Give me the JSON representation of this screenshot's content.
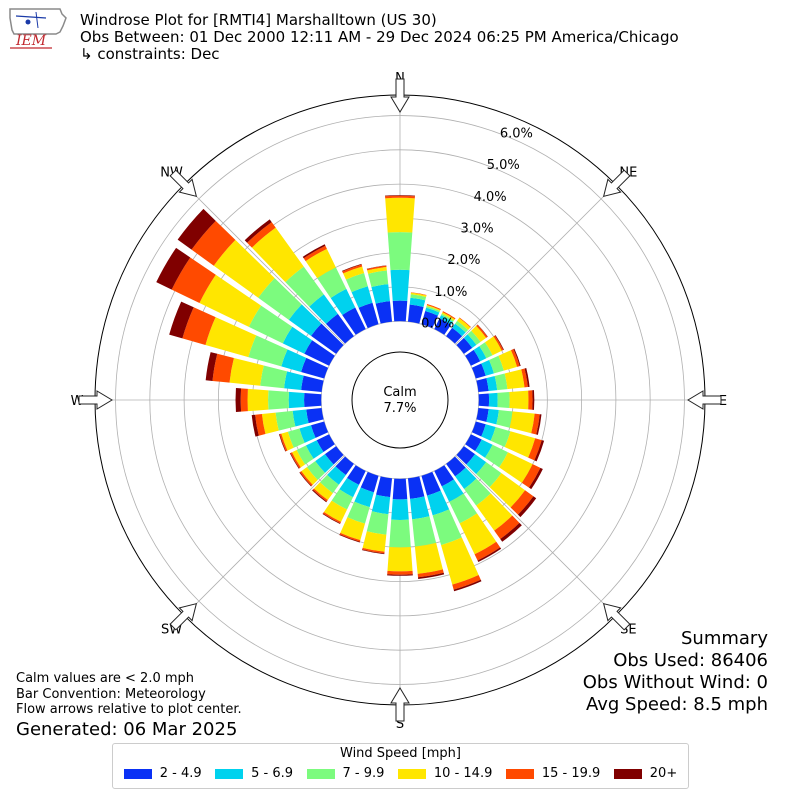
{
  "header": {
    "line1": "Windrose Plot for [RMTI4] Marshalltown (US 30)",
    "line2": "Obs Between: 01 Dec 2000 12:11 AM - 29 Dec 2024 06:25 PM America/Chicago",
    "line3": "↳ constraints: Dec"
  },
  "logo": {
    "text": "IEM"
  },
  "calm": {
    "label": "Calm",
    "value": "7.7%"
  },
  "summary": {
    "title": "Summary",
    "obs_used": "Obs Used: 86406",
    "obs_without_wind": "Obs Without Wind: 0",
    "avg_speed": "Avg Speed: 8.5 mph"
  },
  "notes": {
    "line1": "Calm values are < 2.0 mph",
    "line2": "Bar Convention: Meteorology",
    "line3": "Flow arrows relative to plot center.",
    "generated": "Generated: 06 Mar 2025"
  },
  "legend": {
    "title": "Wind Speed [mph]",
    "items": [
      {
        "label": "2 - 4.9",
        "color": "#0a31f5"
      },
      {
        "label": "5 - 6.9",
        "color": "#00d2ee"
      },
      {
        "label": "7 - 9.9",
        "color": "#7cfb7e"
      },
      {
        "label": "10 - 14.9",
        "color": "#ffe600"
      },
      {
        "label": "15 - 19.9",
        "color": "#ff4a00"
      },
      {
        "label": "20+",
        "color": "#800000"
      }
    ]
  },
  "chart_data": {
    "type": "windrose",
    "units": "%",
    "rlim": [
      -2.3,
      6.6
    ],
    "ring_labels": [
      "0.0%",
      "1.0%",
      "2.0%",
      "3.0%",
      "4.0%",
      "5.0%",
      "6.0%"
    ],
    "ring_values": [
      0,
      1,
      2,
      3,
      4,
      5,
      6
    ],
    "compass_labels": [
      "N",
      "NE",
      "E",
      "SE",
      "S",
      "SW",
      "W",
      "NW"
    ],
    "colors": [
      "#0a31f5",
      "#00d2ee",
      "#7cfb7e",
      "#ffe600",
      "#ff4a00",
      "#800000"
    ],
    "series_names": [
      "2 - 4.9",
      "5 - 6.9",
      "7 - 9.9",
      "10 - 14.9",
      "15 - 19.9",
      "20+"
    ],
    "directions": [
      0,
      10,
      20,
      30,
      40,
      50,
      60,
      70,
      80,
      90,
      100,
      110,
      120,
      130,
      140,
      150,
      160,
      170,
      180,
      190,
      200,
      210,
      220,
      230,
      240,
      250,
      260,
      270,
      280,
      290,
      300,
      310,
      320,
      330,
      340,
      350
    ],
    "values": [
      [
        0.6,
        0.9,
        1.1,
        1.0,
        0.06,
        0.02
      ],
      [
        0.5,
        0.2,
        0.1,
        0.05,
        0.01,
        0.0
      ],
      [
        0.4,
        0.1,
        0.05,
        0.03,
        0.03,
        0.0
      ],
      [
        0.35,
        0.1,
        0.05,
        0.05,
        0.03,
        0.0
      ],
      [
        0.3,
        0.15,
        0.1,
        0.1,
        0.02,
        0.0
      ],
      [
        0.3,
        0.15,
        0.15,
        0.2,
        0.05,
        0.01
      ],
      [
        0.3,
        0.2,
        0.2,
        0.3,
        0.05,
        0.02
      ],
      [
        0.3,
        0.25,
        0.3,
        0.4,
        0.08,
        0.03
      ],
      [
        0.3,
        0.25,
        0.3,
        0.5,
        0.1,
        0.05
      ],
      [
        0.3,
        0.25,
        0.35,
        0.55,
        0.12,
        0.05
      ],
      [
        0.3,
        0.3,
        0.4,
        0.65,
        0.15,
        0.05
      ],
      [
        0.3,
        0.3,
        0.45,
        0.75,
        0.2,
        0.07
      ],
      [
        0.35,
        0.35,
        0.5,
        0.8,
        0.25,
        0.08
      ],
      [
        0.4,
        0.4,
        0.55,
        0.85,
        0.3,
        0.1
      ],
      [
        0.45,
        0.45,
        0.6,
        0.9,
        0.3,
        0.1
      ],
      [
        0.5,
        0.5,
        0.7,
        1.0,
        0.2,
        0.05
      ],
      [
        0.6,
        0.6,
        0.9,
        1.2,
        0.15,
        0.05
      ],
      [
        0.6,
        0.6,
        0.8,
        0.8,
        0.1,
        0.05
      ],
      [
        0.6,
        0.6,
        0.8,
        0.7,
        0.1,
        0.03
      ],
      [
        0.55,
        0.5,
        0.6,
        0.5,
        0.05,
        0.02
      ],
      [
        0.5,
        0.45,
        0.5,
        0.5,
        0.05,
        0.02
      ],
      [
        0.45,
        0.4,
        0.4,
        0.4,
        0.05,
        0.02
      ],
      [
        0.4,
        0.35,
        0.3,
        0.25,
        0.05,
        0.03
      ],
      [
        0.4,
        0.35,
        0.3,
        0.2,
        0.05,
        0.02
      ],
      [
        0.4,
        0.35,
        0.3,
        0.15,
        0.05,
        0.02
      ],
      [
        0.4,
        0.35,
        0.35,
        0.2,
        0.05,
        0.02
      ],
      [
        0.45,
        0.4,
        0.5,
        0.4,
        0.2,
        0.1
      ],
      [
        0.5,
        0.45,
        0.6,
        0.6,
        0.2,
        0.15
      ],
      [
        0.6,
        0.5,
        0.7,
        0.9,
        0.5,
        0.2
      ],
      [
        0.7,
        0.6,
        1.0,
        1.3,
        0.7,
        0.4
      ],
      [
        0.8,
        0.7,
        1.1,
        1.6,
        0.9,
        0.5
      ],
      [
        0.9,
        0.8,
        1.1,
        1.6,
        0.8,
        0.5
      ],
      [
        0.8,
        0.7,
        1.0,
        1.4,
        0.2,
        0.1
      ],
      [
        0.7,
        0.6,
        0.7,
        0.6,
        0.1,
        0.05
      ],
      [
        0.65,
        0.5,
        0.4,
        0.2,
        0.06,
        0.02
      ],
      [
        0.6,
        0.5,
        0.4,
        0.1,
        0.04,
        0.01
      ]
    ]
  }
}
